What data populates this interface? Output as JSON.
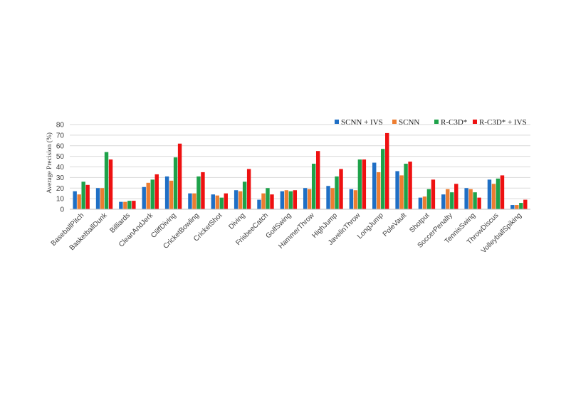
{
  "chart_data": {
    "type": "bar",
    "ylabel": "Average Precision (%)",
    "xlabel": "",
    "ylim": [
      0,
      80
    ],
    "yticks": [
      0,
      10,
      20,
      30,
      40,
      50,
      60,
      70,
      80
    ],
    "grid": true,
    "legend_position": "top-right",
    "categories": [
      "BaseballPitch",
      "BasketballDunk",
      "Billiards",
      "CleanAndJerk",
      "CliffDiving",
      "CricketBowling",
      "CricketShot",
      "Diving",
      "FrisbeeCatch",
      "GolfSwing",
      "HammerThrow",
      "HighJump",
      "JavelinThrow",
      "LongJump",
      "PoleVault",
      "Shotput",
      "SoccerPenalty",
      "TennisSwing",
      "ThrowDiscus",
      "VolleyballSpiking"
    ],
    "series": [
      {
        "name": "SCNN + IVS",
        "color": "#1f6fc5",
        "values": [
          17,
          20,
          7,
          21,
          31,
          15,
          14,
          18,
          9,
          17,
          20,
          22,
          19,
          44,
          36,
          11,
          14,
          20,
          28,
          4
        ]
      },
      {
        "name": "SCNN",
        "color": "#ed7d31",
        "values": [
          14,
          20,
          7,
          25,
          27,
          15,
          13,
          17,
          15,
          18,
          19,
          20,
          18,
          35,
          32,
          12,
          19,
          19,
          24,
          4
        ]
      },
      {
        "name": "R-C3D*",
        "color": "#1ea24a",
        "values": [
          26,
          54,
          8,
          28,
          49,
          31,
          11,
          26,
          20,
          17,
          43,
          31,
          47,
          57,
          43,
          19,
          16,
          16,
          29,
          6
        ]
      },
      {
        "name": "R-C3D* + IVS",
        "color": "#ee1111",
        "values": [
          23,
          47,
          8,
          33,
          62,
          35,
          15,
          38,
          14,
          18,
          55,
          38,
          47,
          72,
          45,
          28,
          24,
          11,
          32,
          9
        ]
      }
    ]
  }
}
